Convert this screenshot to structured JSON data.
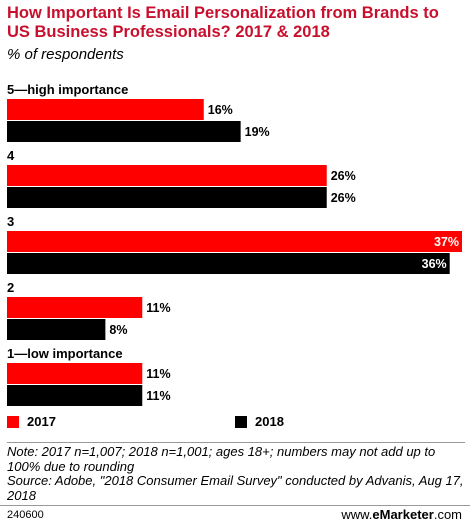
{
  "header": {
    "title": "How Important Is Email Personalization from Brands to US Business Professionals? 2017 & 2018",
    "subtitle": "% of respondents"
  },
  "chart_data": {
    "type": "bar",
    "orientation": "horizontal",
    "categories": [
      "5—high importance",
      "4",
      "3",
      "2",
      "1—low importance"
    ],
    "series": [
      {
        "name": "2017",
        "color": "#ff0000",
        "values": [
          16,
          26,
          37,
          11,
          11
        ]
      },
      {
        "name": "2018",
        "color": "#000000",
        "values": [
          19,
          26,
          36,
          8,
          11
        ]
      }
    ],
    "value_suffix": "%",
    "xlim": [
      0,
      37
    ],
    "grid": false,
    "legend": "bottom-left"
  },
  "legend": {
    "label_2017": "2017",
    "label_2018": "2018"
  },
  "footer": {
    "note": "Note: 2017 n=1,007; 2018 n=1,001; ages 18+; numbers may not add up to 100% due to rounding",
    "source": "Source: Adobe, \"2018 Consumer Email Survey\" conducted by Advanis, Aug 17, 2018",
    "chart_id": "240600",
    "brand_prefix": "www.",
    "brand_name": "eMarketer",
    "brand_suffix": ".com"
  }
}
